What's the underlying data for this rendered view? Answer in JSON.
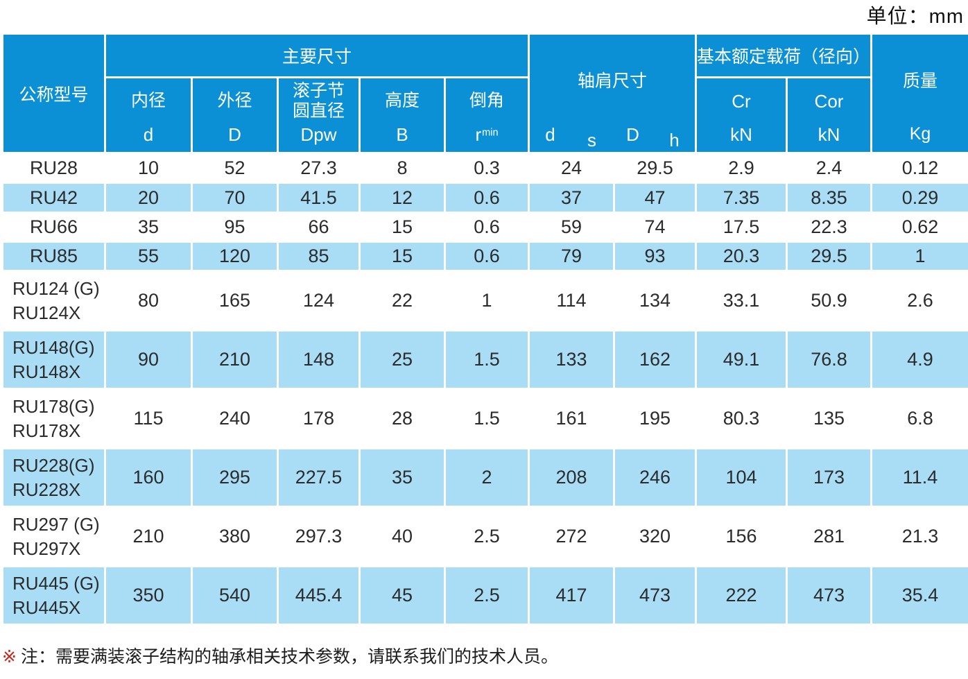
{
  "meta": {
    "unit_label": "单位：mm"
  },
  "table": {
    "model_header": "公称型号",
    "groups": {
      "main": "主要尺寸",
      "shoulder": "轴肩尺寸",
      "load": "基本额定载荷（径向）",
      "mass": "质量"
    },
    "sub_headers": [
      {
        "label": "内径",
        "sym": "d",
        "sub": ""
      },
      {
        "label": "外径",
        "sym": "D",
        "sub": ""
      },
      {
        "label": "滚子节\n圆直径",
        "sym": "Dpw",
        "sub": ""
      },
      {
        "label": "高度",
        "sym": "B",
        "sub": ""
      },
      {
        "label": "倒角",
        "sym": "r",
        "sub": "min"
      }
    ],
    "shoulder_syms": [
      {
        "sym": "d",
        "sub": "s"
      },
      {
        "sym": "D",
        "sub": "h"
      }
    ],
    "load_cols": [
      {
        "label": "Cr",
        "unit": "kN"
      },
      {
        "label": "Cor",
        "unit": "kN"
      }
    ],
    "mass_unit": "Kg",
    "rows": [
      {
        "models": [
          "RU28"
        ],
        "values": [
          "10",
          "52",
          "27.3",
          "8",
          "0.3",
          "24",
          "29.5",
          "2.9",
          "2.4",
          "0.12"
        ]
      },
      {
        "models": [
          "RU42"
        ],
        "values": [
          "20",
          "70",
          "41.5",
          "12",
          "0.6",
          "37",
          "47",
          "7.35",
          "8.35",
          "0.29"
        ]
      },
      {
        "models": [
          "RU66"
        ],
        "values": [
          "35",
          "95",
          "66",
          "15",
          "0.6",
          "59",
          "74",
          "17.5",
          "22.3",
          "0.62"
        ]
      },
      {
        "models": [
          "RU85"
        ],
        "values": [
          "55",
          "120",
          "85",
          "15",
          "0.6",
          "79",
          "93",
          "20.3",
          "29.5",
          "1"
        ]
      },
      {
        "models": [
          "RU124 (G)",
          "RU124X"
        ],
        "values": [
          "80",
          "165",
          "124",
          "22",
          "1",
          "114",
          "134",
          "33.1",
          "50.9",
          "2.6"
        ]
      },
      {
        "models": [
          "RU148(G)",
          "RU148X"
        ],
        "values": [
          "90",
          "210",
          "148",
          "25",
          "1.5",
          "133",
          "162",
          "49.1",
          "76.8",
          "4.9"
        ]
      },
      {
        "models": [
          "RU178(G)",
          "RU178X"
        ],
        "values": [
          "115",
          "240",
          "178",
          "28",
          "1.5",
          "161",
          "195",
          "80.3",
          "135",
          "6.8"
        ]
      },
      {
        "models": [
          "RU228(G)",
          "RU228X"
        ],
        "values": [
          "160",
          "295",
          "227.5",
          "35",
          "2",
          "208",
          "246",
          "104",
          "173",
          "11.4"
        ]
      },
      {
        "models": [
          "RU297 (G)",
          "RU297X"
        ],
        "values": [
          "210",
          "380",
          "297.3",
          "40",
          "2.5",
          "272",
          "320",
          "156",
          "281",
          "21.3"
        ]
      },
      {
        "models": [
          "RU445 (G)",
          "RU445X"
        ],
        "values": [
          "350",
          "540",
          "445.4",
          "45",
          "2.5",
          "417",
          "473",
          "222",
          "473",
          "35.4"
        ]
      }
    ]
  },
  "note": {
    "marker": "※",
    "text": "注：需要满装滚子结构的轴承相关技术参数，请联系我们的技术人员。"
  },
  "colors": {
    "header_blue": "#0b8fd5",
    "row_blue": "#a9ddf5",
    "note_red": "#cc2418",
    "text_dark": "#2b2b2b"
  }
}
